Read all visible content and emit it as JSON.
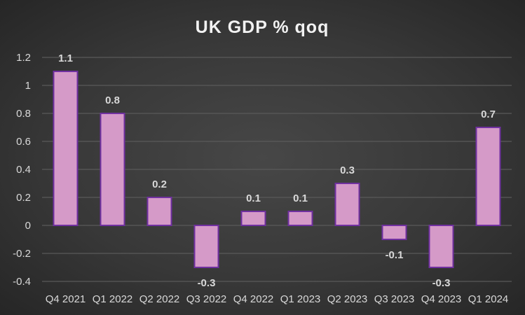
{
  "chart_data": {
    "type": "bar",
    "title": "UK GDP % qoq",
    "xlabel": "",
    "ylabel": "",
    "categories": [
      "Q4 2021",
      "Q1 2022",
      "Q2 2022",
      "Q3 2022",
      "Q4 2022",
      "Q1 2023",
      "Q2 2023",
      "Q3 2023",
      "Q4 2023",
      "Q1 2024"
    ],
    "values": [
      1.1,
      0.8,
      0.2,
      -0.3,
      0.1,
      0.1,
      0.3,
      -0.1,
      -0.3,
      0.7
    ],
    "data_labels": [
      "1.1",
      "0.8",
      "0.2",
      "-0.3",
      "0.1",
      "0.1",
      "0.3",
      "-0.1",
      "-0.3",
      "0.7"
    ],
    "ylim": [
      -0.4,
      1.2
    ],
    "yticks": [
      "-0.4",
      "-0.2",
      "0",
      "0.2",
      "0.4",
      "0.6",
      "0.8",
      "1",
      "1.2"
    ],
    "grid": true,
    "legend": "none",
    "colors": {
      "bar_fill": "#d59ac8",
      "bar_stroke": "#7030a0",
      "grid": "#5a5a5a",
      "text": "#d9d9d9"
    }
  }
}
